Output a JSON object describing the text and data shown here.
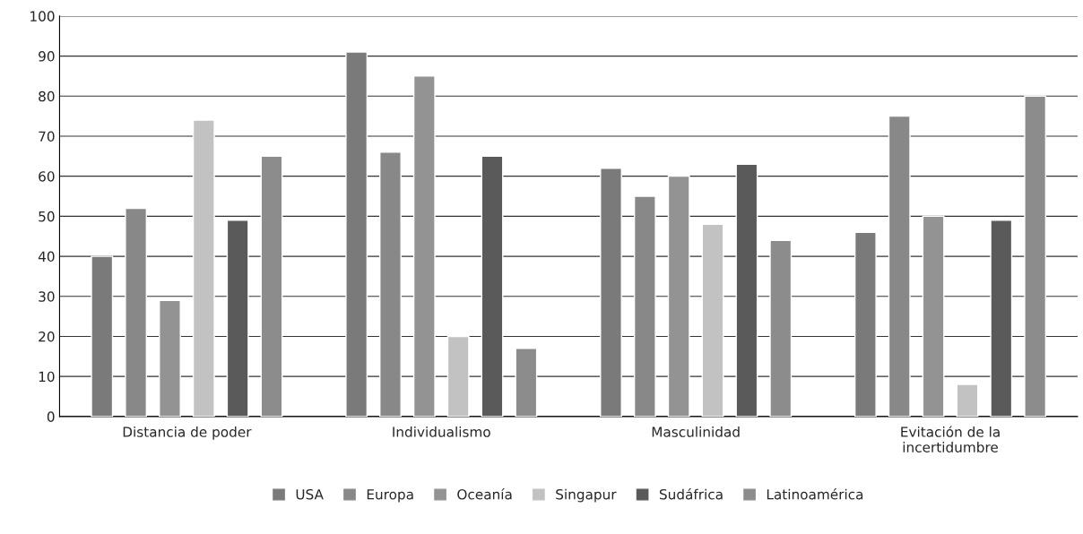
{
  "chart_data": {
    "type": "bar",
    "categories": [
      "Distancia de poder",
      "Individualismo",
      "Masculinidad",
      "Evitación de la\nincertidumbre"
    ],
    "series": [
      {
        "name": "USA",
        "color": "#7a7a7a",
        "values": [
          40,
          91,
          62,
          46
        ]
      },
      {
        "name": "Europa",
        "color": "#888888",
        "values": [
          52,
          66,
          55,
          75
        ]
      },
      {
        "name": "Oceanía",
        "color": "#939393",
        "values": [
          29,
          85,
          60,
          50
        ]
      },
      {
        "name": "Singapur",
        "color": "#c2c2c2",
        "values": [
          74,
          20,
          48,
          8
        ]
      },
      {
        "name": "Sudáfrica",
        "color": "#5a5a5a",
        "values": [
          49,
          65,
          63,
          49
        ]
      },
      {
        "name": "Latinoamérica",
        "color": "#8c8c8c",
        "values": [
          65,
          17,
          44,
          80
        ]
      }
    ],
    "ylim": [
      0,
      100
    ],
    "yticks": [
      0,
      10,
      20,
      30,
      40,
      50,
      60,
      70,
      80,
      90,
      100
    ],
    "grid": "y",
    "legend": "bottom"
  }
}
